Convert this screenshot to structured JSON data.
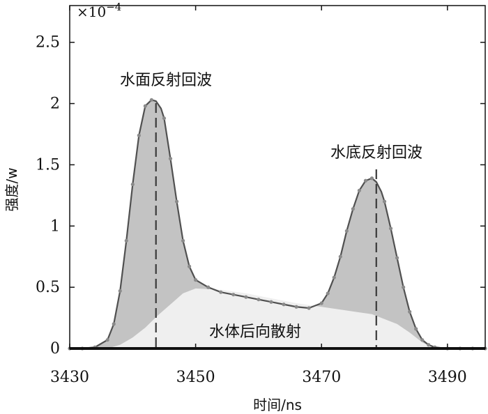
{
  "chart_data": {
    "type": "area",
    "xlabel": "时间/ns",
    "ylabel": "强度/w",
    "exponent_label": "×10",
    "exponent_power": "−4",
    "xlim": [
      3430,
      3496
    ],
    "ylim": [
      0,
      2.8
    ],
    "xticks": [
      3430,
      3450,
      3470,
      3490
    ],
    "yticks": [
      0,
      0.5,
      1,
      1.5,
      2,
      2.5
    ],
    "ytick_labels": [
      "0",
      "0.5",
      "1",
      "1.5",
      "2",
      "2.5"
    ],
    "grid": false,
    "colors": {
      "total_fill": "#c3c3c3",
      "backscatter_fill": "#efefef",
      "line": "#505050",
      "marker": "#8a8a8a",
      "peak_line": "#3a3a3a"
    },
    "series": [
      {
        "values_x": [
          3430,
          3432,
          3434,
          3436,
          3437,
          3438,
          3439,
          3440,
          3441,
          3442,
          3443,
          3443.7,
          3444.5,
          3445,
          3446,
          3447,
          3448,
          3449,
          3450,
          3452,
          3454,
          3456,
          3458,
          3460,
          3462,
          3464,
          3466,
          3468,
          3470,
          3471,
          3472,
          3473,
          3474,
          3475,
          3476,
          3477,
          3478,
          3478.7,
          3479.5,
          3480,
          3481,
          3482,
          3483,
          3484,
          3485,
          3486,
          3487,
          3488,
          3490,
          3492,
          3494,
          3496
        ],
        "values_y": [
          0,
          0,
          0.01,
          0.07,
          0.2,
          0.47,
          0.88,
          1.34,
          1.74,
          1.98,
          2.03,
          2.02,
          1.96,
          1.88,
          1.55,
          1.2,
          0.88,
          0.67,
          0.56,
          0.5,
          0.46,
          0.44,
          0.42,
          0.4,
          0.38,
          0.36,
          0.34,
          0.33,
          0.37,
          0.45,
          0.58,
          0.75,
          0.96,
          1.14,
          1.29,
          1.37,
          1.39,
          1.36,
          1.28,
          1.2,
          0.98,
          0.74,
          0.5,
          0.3,
          0.16,
          0.07,
          0.03,
          0.01,
          0,
          0,
          0,
          0
        ]
      },
      {
        "values_x": [
          3430,
          3436,
          3438,
          3440,
          3442,
          3444,
          3446,
          3448,
          3450,
          3454,
          3458,
          3462,
          3466,
          3470,
          3474,
          3478,
          3482,
          3484,
          3486,
          3488,
          3496
        ],
        "values_y": [
          0,
          0,
          0.03,
          0.09,
          0.17,
          0.27,
          0.36,
          0.45,
          0.49,
          0.48,
          0.45,
          0.41,
          0.37,
          0.34,
          0.31,
          0.28,
          0.2,
          0.13,
          0.05,
          0,
          0
        ]
      }
    ],
    "peaks_x": [
      3443.7,
      3478.7
    ],
    "annotations": {
      "surface": "水面反射回波",
      "bottom": "水底反射回波",
      "backscatter": "水体后向散射"
    }
  }
}
